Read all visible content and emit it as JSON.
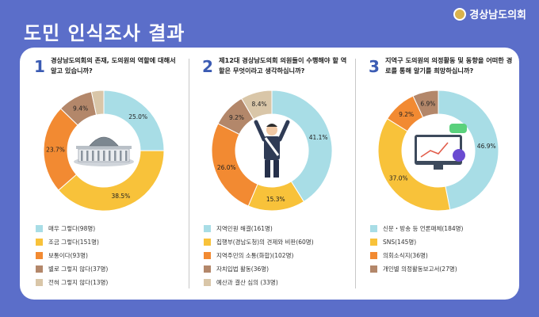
{
  "header": {
    "title": "도민 인식조사 결과",
    "logo_text": "경상남도의회"
  },
  "colors": {
    "background": "#5b6ec9",
    "card": "#ffffff",
    "question_number": "#3b5bb3"
  },
  "chart_data": [
    {
      "type": "pie",
      "number": "1",
      "question": "경상남도의회의 존재, 도의원의 역할에 대해서 알고 있습니까?",
      "center_icon": "legislature-building-icon",
      "slices": [
        {
          "label": "매우 그렇다(98명)",
          "value": 25.0,
          "value_label": "25.0%",
          "color": "#a8dde6"
        },
        {
          "label": "조금 그렇다(151명)",
          "value": 38.5,
          "value_label": "38.5%",
          "color": "#f8c23a"
        },
        {
          "label": "보통이다(93명)",
          "value": 23.7,
          "value_label": "23.7%",
          "color": "#f28a32"
        },
        {
          "label": "별로 그렇지 않다(37명)",
          "value": 9.4,
          "value_label": "9.4%",
          "color": "#b3876a"
        },
        {
          "label": "전혀 그렇지 않다(13명)",
          "value": 3.3,
          "value_label": "3.3%",
          "color": "#d9c6a8"
        }
      ]
    },
    {
      "type": "pie",
      "number": "2",
      "question": "제12대 경상남도의회 의원들이 수행해야 할 역할은 무엇이라고 생각하십니까?",
      "center_icon": "council-member-icon",
      "slices": [
        {
          "label": "지역민원 해결(161명)",
          "value": 41.1,
          "value_label": "41.1%",
          "color": "#a8dde6"
        },
        {
          "label": "집행부(경남도청)의 견제와 비판(60명)",
          "value": 15.3,
          "value_label": "15.3%",
          "color": "#f8c23a"
        },
        {
          "label": "지역주민의 소통(화합)(102명)",
          "value": 26.0,
          "value_label": "26.0%",
          "color": "#f28a32"
        },
        {
          "label": "자치입법 활동(36명)",
          "value": 9.2,
          "value_label": "9.2%",
          "color": "#b3876a"
        },
        {
          "label": "예산과 결산 심의 (33명)",
          "value": 8.4,
          "value_label": "8.4%",
          "color": "#d9c6a8"
        }
      ]
    },
    {
      "type": "pie",
      "number": "3",
      "question": "지역구 도의원의 의정활동 및 동향을 어떠한 경로를 통해 알기를 희망하십니까?",
      "center_icon": "media-monitor-icon",
      "slices": [
        {
          "label": "신문・방송 등 언론매체(184명)",
          "value": 46.9,
          "value_label": "46.9%",
          "color": "#a8dde6"
        },
        {
          "label": "SNS(145명)",
          "value": 37.0,
          "value_label": "37.0%",
          "color": "#f8c23a"
        },
        {
          "label": "의회소식지(36명)",
          "value": 9.2,
          "value_label": "9.2%",
          "color": "#f28a32"
        },
        {
          "label": "개인별 의정활동보고서(27명)",
          "value": 6.9,
          "value_label": "6.9%",
          "color": "#b3876a"
        }
      ]
    }
  ]
}
